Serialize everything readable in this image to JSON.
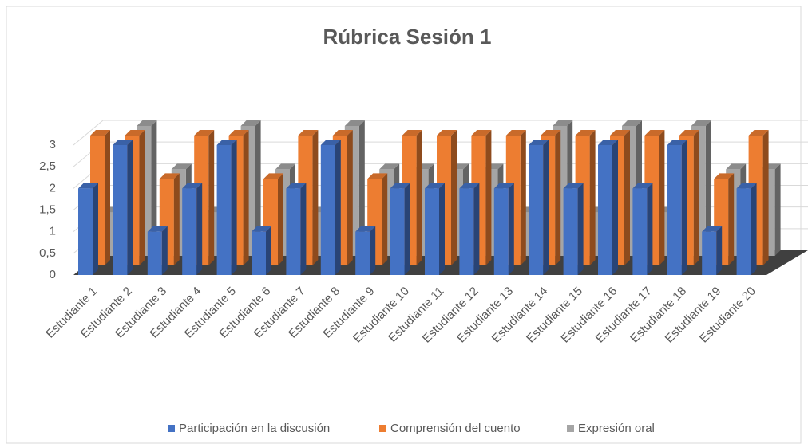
{
  "chart_data": {
    "type": "bar3d",
    "title": "Rúbrica Sesión 1",
    "categories": [
      "Estudiante 1",
      "Estudiante 2",
      "Estudiante 3",
      "Estudiante 4",
      "Estudiante 5",
      "Estudiante 6",
      "Estudiante 7",
      "Estudiante 8",
      "Estudiante 9",
      "Estudiante 10",
      "Estudiante 11",
      "Estudiante 12",
      "Estudiante 13",
      "Estudiante 14",
      "Estudiante 15",
      "Estudiante 16",
      "Estudiante 17",
      "Estudiante 18",
      "Estudiante 19",
      "Estudiante 20"
    ],
    "series": [
      {
        "name": "Participación en la discusión",
        "color": "#4472c4",
        "values": [
          2,
          3,
          1,
          2,
          3,
          1,
          2,
          3,
          1,
          2,
          2,
          2,
          2,
          3,
          2,
          3,
          2,
          3,
          1,
          2
        ]
      },
      {
        "name": "Comprensión del cuento",
        "color": "#ed7d31",
        "values": [
          3,
          3,
          2,
          3,
          3,
          2,
          3,
          3,
          2,
          3,
          3,
          3,
          3,
          3,
          3,
          3,
          3,
          3,
          2,
          3
        ]
      },
      {
        "name": "Expresión oral",
        "color": "#a5a5a5",
        "values": [
          1,
          3,
          2,
          1,
          3,
          2,
          1,
          3,
          2,
          2,
          2,
          2,
          1,
          3,
          1,
          3,
          1,
          3,
          2,
          2
        ]
      }
    ],
    "ylim": [
      0,
      3
    ],
    "yticks": [
      0,
      {
        "value": 0.5,
        "label": "0,5"
      },
      1,
      {
        "value": 1.5,
        "label": "1,5"
      },
      2,
      {
        "value": 2.5,
        "label": "2,5"
      },
      3
    ],
    "grid": true,
    "legend": "bottom"
  }
}
